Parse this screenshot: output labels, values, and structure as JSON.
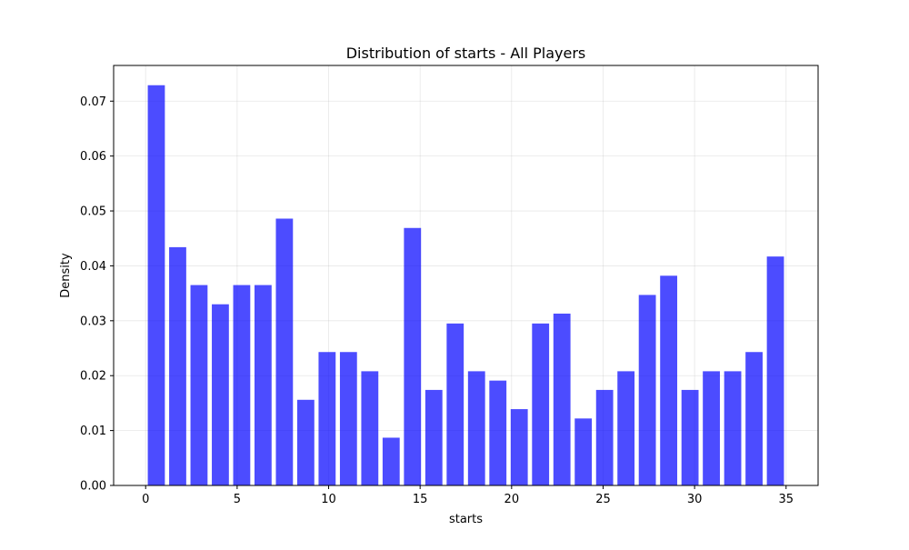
{
  "chart_data": {
    "type": "bar",
    "title": "Distribution of starts - All Players",
    "xlabel": "starts",
    "ylabel": "Density",
    "xlim": [
      -1.75,
      36.75
    ],
    "ylim": [
      0,
      0.0765
    ],
    "grid": true,
    "bar_color": "#0000ff",
    "bar_opacity": 0.7,
    "grid_color": "#b0b0b0",
    "bin_width": 1.167,
    "bin_starts": [
      0,
      1.167,
      2.333,
      3.5,
      4.667,
      5.833,
      7,
      8.167,
      9.333,
      10.5,
      11.667,
      12.833,
      14,
      15.167,
      16.333,
      17.5,
      18.667,
      19.833,
      21,
      22.167,
      23.333,
      24.5,
      25.667,
      26.833,
      28,
      29.167,
      30.333,
      31.5,
      32.667,
      33.833
    ],
    "values": [
      0.0729,
      0.0434,
      0.0365,
      0.033,
      0.0365,
      0.0365,
      0.0486,
      0.0156,
      0.0243,
      0.0243,
      0.0208,
      0.0087,
      0.0469,
      0.0174,
      0.0295,
      0.0208,
      0.0191,
      0.0139,
      0.0295,
      0.0313,
      0.0122,
      0.0174,
      0.0208,
      0.0347,
      0.0382,
      0.0174,
      0.0208,
      0.0208,
      0.0243,
      0.0417
    ],
    "x_ticks": [
      0,
      5,
      10,
      15,
      20,
      25,
      30,
      35
    ],
    "x_tick_labels": [
      "0",
      "5",
      "10",
      "15",
      "20",
      "25",
      "30",
      "35"
    ],
    "y_ticks": [
      0,
      0.01,
      0.02,
      0.03,
      0.04,
      0.05,
      0.06,
      0.07
    ],
    "y_tick_labels": [
      "0.00",
      "0.01",
      "0.02",
      "0.03",
      "0.04",
      "0.05",
      "0.06",
      "0.07"
    ]
  }
}
